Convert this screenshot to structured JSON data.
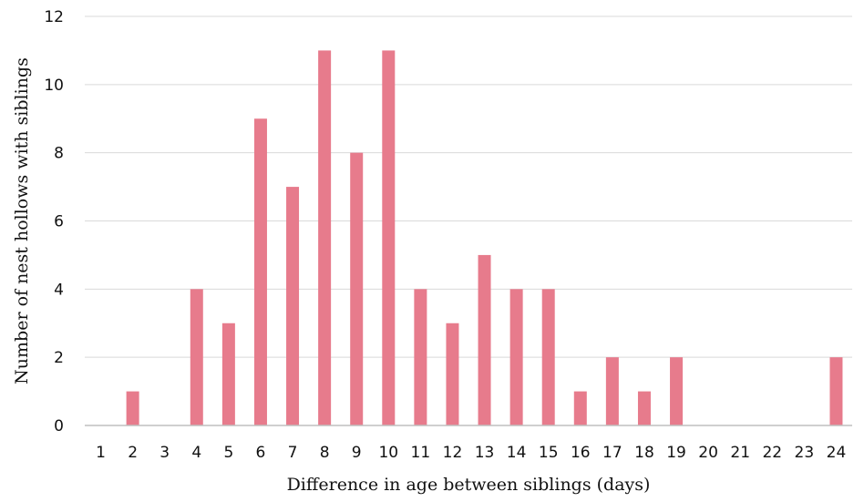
{
  "chart_data": {
    "type": "bar",
    "categories": [
      "1",
      "2",
      "3",
      "4",
      "5",
      "6",
      "7",
      "8",
      "9",
      "10",
      "11",
      "12",
      "13",
      "14",
      "15",
      "16",
      "17",
      "18",
      "19",
      "20",
      "21",
      "22",
      "23",
      "24"
    ],
    "values": [
      0,
      1,
      0,
      4,
      3,
      9,
      7,
      11,
      8,
      11,
      4,
      3,
      5,
      4,
      4,
      1,
      2,
      1,
      2,
      0,
      0,
      0,
      0,
      2
    ],
    "xlabel": "Difference in age between siblings (days)",
    "ylabel": "Number of nest hollows with siblings",
    "ylim": [
      0,
      12
    ],
    "yticks": [
      0,
      2,
      4,
      6,
      8,
      10,
      12
    ],
    "grid": false,
    "legend": "none",
    "bar_color": "#e77b8c"
  }
}
